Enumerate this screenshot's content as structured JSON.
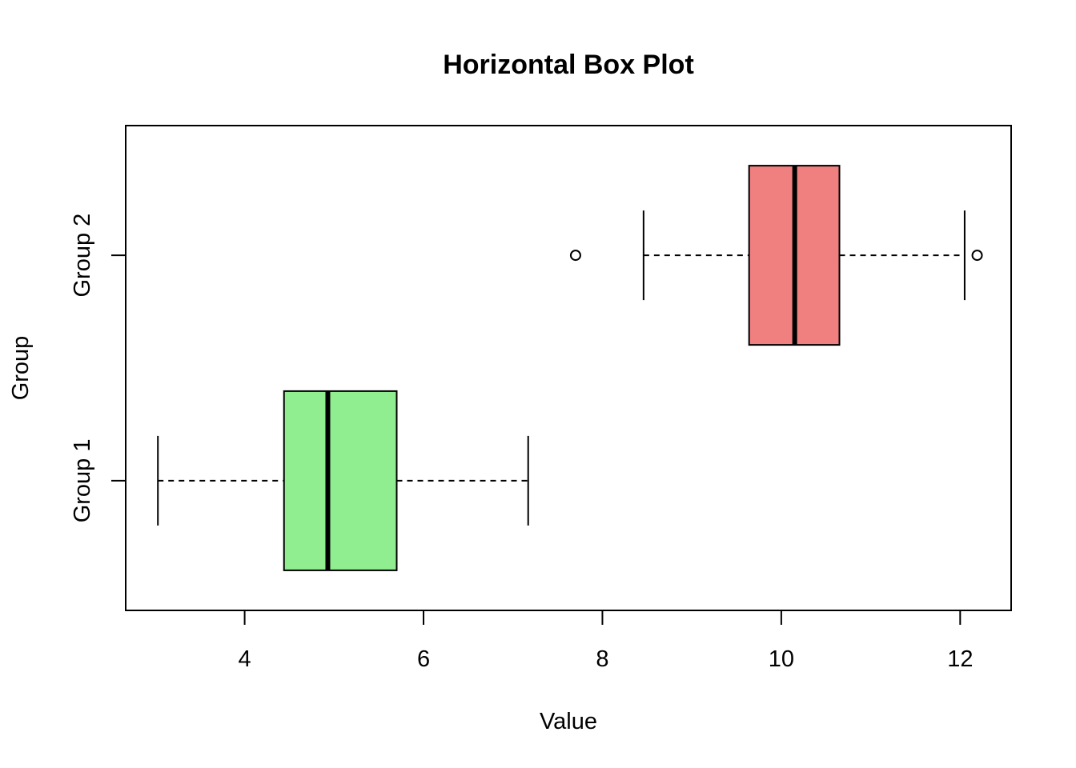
{
  "chart_data": {
    "type": "box",
    "orientation": "horizontal",
    "title": "Horizontal Box Plot",
    "xlabel": "Value",
    "ylabel": "Group",
    "xlim": [
      2.67,
      12.57
    ],
    "xticks": [
      4,
      6,
      8,
      10,
      12
    ],
    "grid": false,
    "groups": [
      {
        "name": "Group 1",
        "color": "#90EE90",
        "whisker_low": 3.03,
        "q1": 4.44,
        "median": 4.93,
        "q3": 5.7,
        "whisker_high": 7.17,
        "outliers": []
      },
      {
        "name": "Group 2",
        "color": "#F08080",
        "whisker_low": 8.46,
        "q1": 9.64,
        "median": 10.15,
        "q3": 10.65,
        "whisker_high": 12.05,
        "outliers": [
          7.7,
          12.19
        ]
      }
    ]
  }
}
